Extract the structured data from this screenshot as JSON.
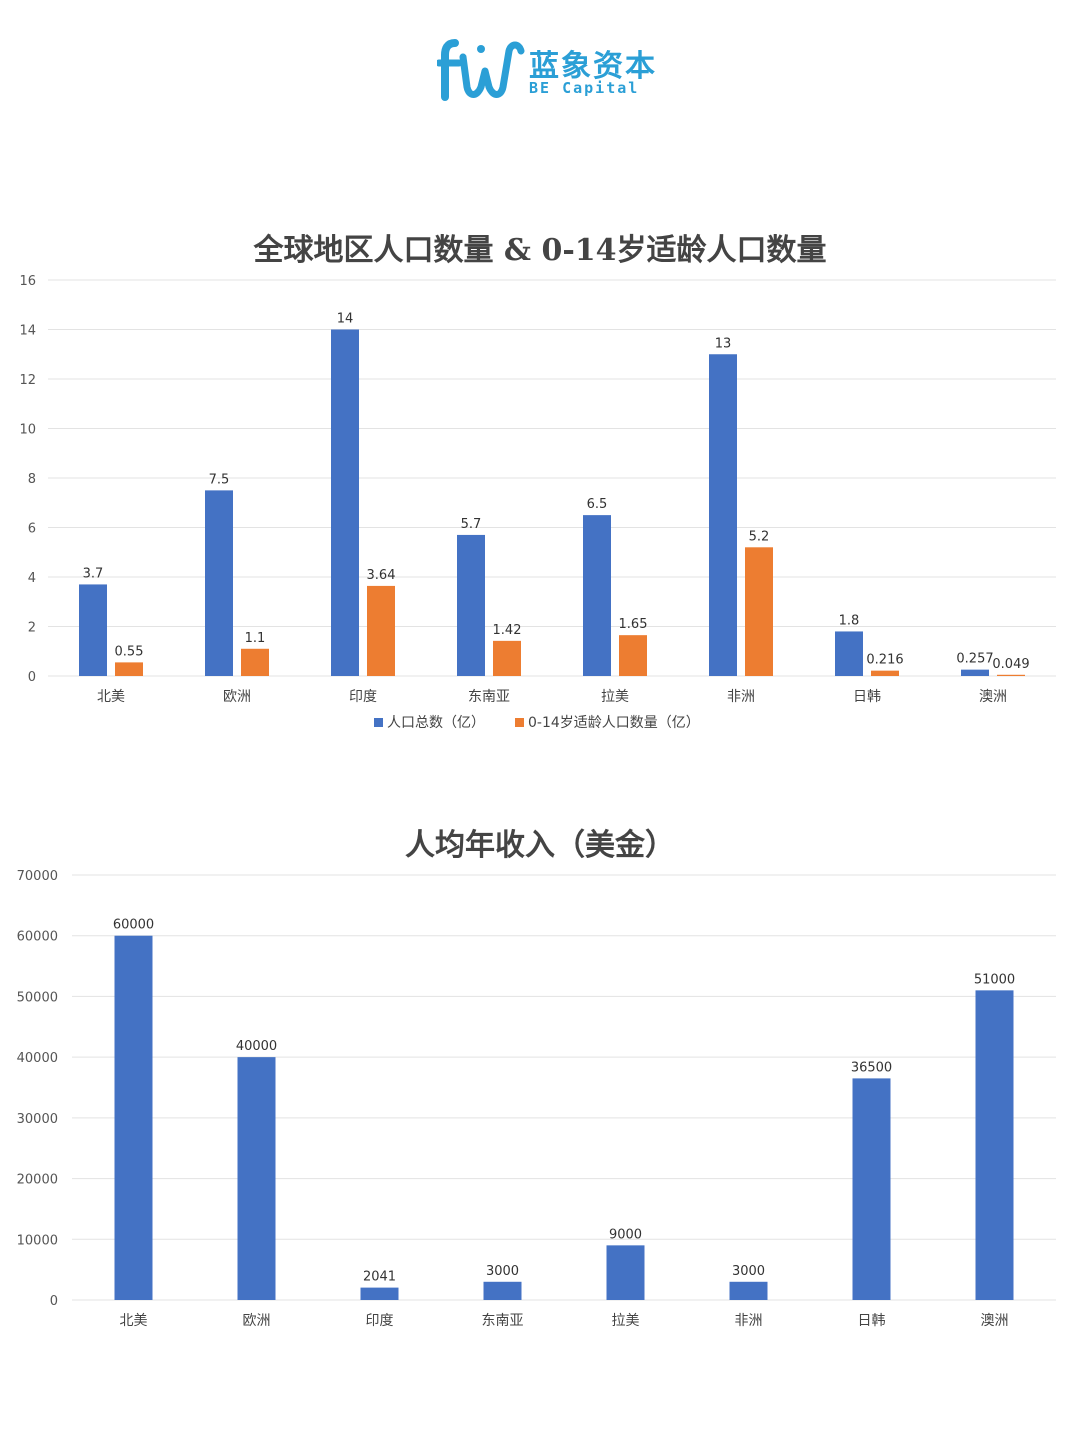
{
  "brand": {
    "name_cn": "蓝象资本",
    "name_en": "BE Capital",
    "accent": "#2b9fd6",
    "icon": "elephant-fw-logo-icon"
  },
  "chart_data": [
    {
      "type": "bar",
      "title": "全球地区人口数量 & 0-14岁适龄人口数量",
      "categories": [
        "北美",
        "欧洲",
        "印度",
        "东南亚",
        "拉美",
        "非洲",
        "日韩",
        "澳洲"
      ],
      "series": [
        {
          "name": "人口总数（亿）",
          "color": "#4472c4",
          "values": [
            3.7,
            7.5,
            14,
            5.7,
            6.5,
            13,
            1.8,
            0.257
          ]
        },
        {
          "name": "0-14岁适龄人口数量（亿）",
          "color": "#ed7d31",
          "values": [
            0.55,
            1.1,
            3.64,
            1.42,
            1.65,
            5.2,
            0.216,
            0.049
          ]
        }
      ],
      "ylim": [
        0,
        16
      ],
      "yticks": [
        0,
        2,
        4,
        6,
        8,
        10,
        12,
        14,
        16
      ],
      "grid": true,
      "legend": "bottom"
    },
    {
      "type": "bar",
      "title": "人均年收入（美金）",
      "categories": [
        "北美",
        "欧洲",
        "印度",
        "东南亚",
        "拉美",
        "非洲",
        "日韩",
        "澳洲"
      ],
      "series": [
        {
          "color": "#4472c4",
          "values": [
            60000,
            40000,
            2041,
            3000,
            9000,
            3000,
            36500,
            51000
          ]
        }
      ],
      "ylim": [
        0,
        70000
      ],
      "yticks": [
        0,
        10000,
        20000,
        30000,
        40000,
        50000,
        60000,
        70000
      ],
      "grid": true
    }
  ]
}
